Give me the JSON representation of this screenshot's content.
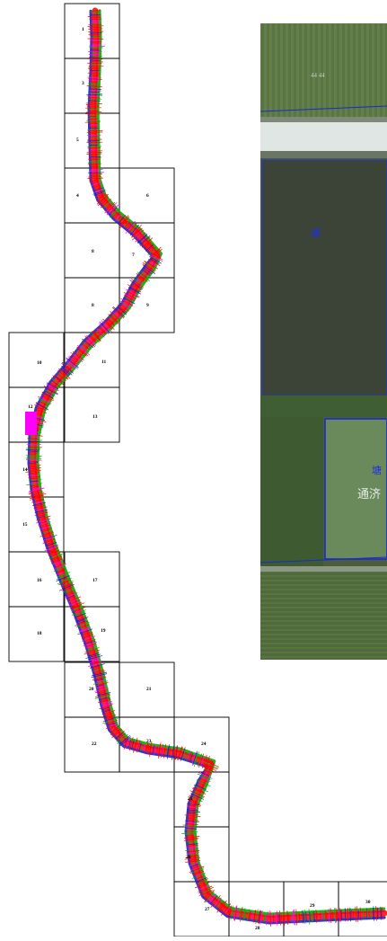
{
  "map": {
    "sheets": [
      {
        "id": "1",
        "label": "1"
      },
      {
        "id": "2",
        "label": "3"
      },
      {
        "id": "3",
        "label": "5"
      },
      {
        "id": "4",
        "label": "4"
      },
      {
        "id": "5",
        "label": "6"
      },
      {
        "id": "6",
        "label": "8"
      },
      {
        "id": "7",
        "label": "7"
      },
      {
        "id": "8",
        "label": "8"
      },
      {
        "id": "9",
        "label": "9"
      },
      {
        "id": "10",
        "label": "10"
      },
      {
        "id": "11",
        "label": "11"
      },
      {
        "id": "12",
        "label": "12"
      },
      {
        "id": "13",
        "label": "13"
      },
      {
        "id": "14",
        "label": "14"
      },
      {
        "id": "15",
        "label": "15"
      },
      {
        "id": "16",
        "label": "16"
      },
      {
        "id": "17",
        "label": "17"
      },
      {
        "id": "18",
        "label": "18"
      },
      {
        "id": "19",
        "label": "19"
      },
      {
        "id": "20",
        "label": "20"
      },
      {
        "id": "21",
        "label": "21"
      },
      {
        "id": "22",
        "label": "22"
      },
      {
        "id": "23",
        "label": "23"
      },
      {
        "id": "24",
        "label": "24"
      },
      {
        "id": "25",
        "label": "25"
      },
      {
        "id": "26",
        "label": "26"
      },
      {
        "id": "27",
        "label": "27"
      },
      {
        "id": "28",
        "label": "28"
      },
      {
        "id": "29",
        "label": "29"
      },
      {
        "id": "30",
        "label": "30"
      },
      {
        "id": "31",
        "label": "31"
      }
    ],
    "route_colors": {
      "primary": "#ff0000",
      "secondary": "#00b000",
      "tertiary": "#2020c0",
      "accent": "#ff00ff"
    },
    "highlight_color": "#ff00ff"
  },
  "aerial": {
    "labels": {
      "pond_top": "塘",
      "pond_bottom": "塘",
      "place_name": "通济",
      "field_marks": "44 44"
    },
    "colors": {
      "field": "#556f3f",
      "water_dark": "#3a4534",
      "water_green": "#6d8b5e",
      "road": "#dfe6e4",
      "boundary": "#1a2ad0"
    }
  }
}
